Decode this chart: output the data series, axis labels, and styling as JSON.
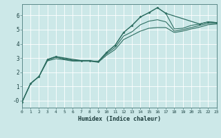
{
  "xlabel": "Humidex (Indice chaleur)",
  "bg_color": "#cce8e8",
  "grid_color": "#ffffff",
  "line_color": "#2e6e62",
  "x_min": 0,
  "x_max": 23,
  "y_min": -0.5,
  "y_max": 6.8,
  "series1_x": [
    0,
    1,
    2,
    3,
    4,
    5,
    6,
    7,
    8,
    9,
    10,
    11,
    12,
    13,
    14,
    15,
    16,
    17,
    18,
    19,
    20,
    21,
    22,
    23
  ],
  "series1_y": [
    -0.1,
    1.2,
    1.7,
    2.9,
    3.1,
    2.95,
    2.85,
    2.82,
    2.8,
    2.75,
    3.4,
    3.9,
    4.8,
    5.3,
    5.9,
    6.2,
    6.55,
    6.15,
    5.05,
    5.1,
    5.3,
    5.4,
    5.55,
    5.5
  ],
  "series2_x": [
    0,
    1,
    2,
    3,
    4,
    5,
    6,
    7,
    8,
    9,
    10,
    11,
    12,
    13,
    14,
    15,
    16,
    17,
    18,
    19,
    20,
    21,
    22,
    23
  ],
  "series2_y": [
    -0.1,
    1.2,
    1.7,
    2.85,
    3.05,
    2.92,
    2.82,
    2.82,
    2.82,
    2.75,
    3.3,
    3.75,
    4.55,
    4.85,
    5.35,
    5.6,
    5.7,
    5.55,
    4.9,
    5.0,
    5.15,
    5.3,
    5.45,
    5.45
  ],
  "series3_x": [
    0,
    1,
    2,
    3,
    4,
    5,
    6,
    7,
    8,
    9,
    10,
    11,
    12,
    13,
    14,
    15,
    16,
    17,
    18,
    19,
    20,
    21,
    22,
    23
  ],
  "series3_y": [
    -0.1,
    1.2,
    1.7,
    2.8,
    2.95,
    2.88,
    2.78,
    2.78,
    2.78,
    2.7,
    3.2,
    3.6,
    4.3,
    4.6,
    4.9,
    5.1,
    5.15,
    5.15,
    4.8,
    4.9,
    5.05,
    5.18,
    5.35,
    5.4
  ],
  "series4_x": [
    0,
    1,
    2,
    3,
    4,
    7,
    8,
    9,
    10,
    11,
    12,
    13,
    14,
    15,
    16,
    17,
    21,
    22,
    23
  ],
  "series4_y": [
    -0.1,
    1.2,
    1.7,
    2.9,
    3.1,
    2.82,
    2.8,
    2.75,
    3.4,
    3.9,
    4.8,
    5.3,
    5.9,
    6.2,
    6.55,
    6.15,
    5.4,
    5.55,
    5.5
  ]
}
